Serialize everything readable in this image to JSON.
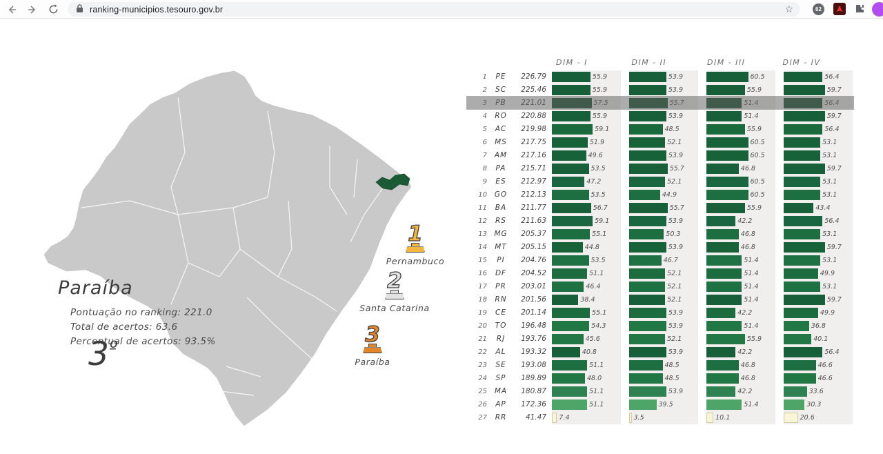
{
  "browser": {
    "url": "ranking-municipios.tesouro.gov.br",
    "extension_badge": "62"
  },
  "state_panel": {
    "name": "Paraíba",
    "stats": [
      "Pontuação no ranking: 221.0",
      "Total de acertos: 63.6",
      "Percentual de acertos: 93.5%"
    ],
    "position_number": "3",
    "position_ordinal": "º"
  },
  "podium": [
    {
      "place": "1",
      "state": "Pernambuco",
      "color": "#f5b53f"
    },
    {
      "place": "2",
      "state": "Santa Catarina",
      "color": "#e2e2e2"
    },
    {
      "place": "3",
      "state": "Paraíba",
      "color": "#e2862e"
    }
  ],
  "chart_data": {
    "type": "bar",
    "orientation": "horizontal",
    "columns": [
      "DIM - I",
      "DIM - II",
      "DIM - III",
      "DIM - IV"
    ],
    "value_axis_max": 100,
    "highlighted_state": "PB",
    "rows": [
      {
        "rank": "1",
        "uf": "PE",
        "score": "226.79",
        "dims": [
          "55.9",
          "53.9",
          "60.5",
          "56.4"
        ],
        "color": "#175f39"
      },
      {
        "rank": "2",
        "uf": "SC",
        "score": "225.46",
        "dims": [
          "55.9",
          "53.9",
          "55.9",
          "59.7"
        ],
        "color": "#175f39"
      },
      {
        "rank": "3",
        "uf": "PB",
        "score": "221.01",
        "dims": [
          "57.5",
          "55.7",
          "51.4",
          "56.4"
        ],
        "color": "#114a2c",
        "highlight": true
      },
      {
        "rank": "4",
        "uf": "RO",
        "score": "220.88",
        "dims": [
          "55.9",
          "53.9",
          "51.4",
          "59.7"
        ],
        "color": "#175f39"
      },
      {
        "rank": "5",
        "uf": "AC",
        "score": "219.98",
        "dims": [
          "59.1",
          "48.5",
          "55.9",
          "56.4"
        ],
        "color": "#1a6a3e"
      },
      {
        "rank": "6",
        "uf": "MS",
        "score": "217.75",
        "dims": [
          "51.9",
          "52.1",
          "60.5",
          "53.1"
        ],
        "color": "#186239"
      },
      {
        "rank": "7",
        "uf": "AM",
        "score": "217.16",
        "dims": [
          "49.6",
          "53.9",
          "60.5",
          "53.1"
        ],
        "color": "#186239"
      },
      {
        "rank": "8",
        "uf": "PA",
        "score": "215.71",
        "dims": [
          "53.5",
          "55.7",
          "46.8",
          "59.7"
        ],
        "color": "#17603a"
      },
      {
        "rank": "9",
        "uf": "ES",
        "score": "212.97",
        "dims": [
          "47.2",
          "52.1",
          "60.5",
          "53.1"
        ],
        "color": "#196640"
      },
      {
        "rank": "10",
        "uf": "GO",
        "score": "212.13",
        "dims": [
          "53.5",
          "44.9",
          "60.5",
          "53.1"
        ],
        "color": "#1d6f41"
      },
      {
        "rank": "11",
        "uf": "BA",
        "score": "211.77",
        "dims": [
          "56.7",
          "55.7",
          "55.9",
          "43.4"
        ],
        "color": "#17603a"
      },
      {
        "rank": "12",
        "uf": "RS",
        "score": "211.63",
        "dims": [
          "59.1",
          "53.9",
          "42.2",
          "56.4"
        ],
        "color": "#196640"
      },
      {
        "rank": "13",
        "uf": "MG",
        "score": "205.37",
        "dims": [
          "55.1",
          "50.3",
          "46.8",
          "53.1"
        ],
        "color": "#1d6f41"
      },
      {
        "rank": "14",
        "uf": "MT",
        "score": "205.15",
        "dims": [
          "44.8",
          "53.9",
          "46.8",
          "59.7"
        ],
        "color": "#186239"
      },
      {
        "rank": "15",
        "uf": "PI",
        "score": "204.76",
        "dims": [
          "53.5",
          "46.7",
          "51.4",
          "53.1"
        ],
        "color": "#1e7142"
      },
      {
        "rank": "16",
        "uf": "DF",
        "score": "204.52",
        "dims": [
          "51.1",
          "52.1",
          "51.4",
          "49.9"
        ],
        "color": "#1c6c40"
      },
      {
        "rank": "17",
        "uf": "PR",
        "score": "203.01",
        "dims": [
          "46.4",
          "52.1",
          "51.4",
          "53.1"
        ],
        "color": "#1e7142"
      },
      {
        "rank": "18",
        "uf": "RN",
        "score": "201.56",
        "dims": [
          "38.4",
          "52.1",
          "51.4",
          "59.7"
        ],
        "color": "#175f39"
      },
      {
        "rank": "19",
        "uf": "CE",
        "score": "201.14",
        "dims": [
          "55.1",
          "53.9",
          "42.2",
          "49.9"
        ],
        "color": "#1c6c40"
      },
      {
        "rank": "20",
        "uf": "TO",
        "score": "196.48",
        "dims": [
          "54.3",
          "53.9",
          "51.4",
          "36.8"
        ],
        "color": "#227845"
      },
      {
        "rank": "21",
        "uf": "RJ",
        "score": "193.76",
        "dims": [
          "45.6",
          "52.1",
          "55.9",
          "40.1"
        ],
        "color": "#227845"
      },
      {
        "rank": "22",
        "uf": "AL",
        "score": "193.32",
        "dims": [
          "40.8",
          "53.9",
          "42.2",
          "56.4"
        ],
        "color": "#175f39"
      },
      {
        "rank": "23",
        "uf": "SE",
        "score": "193.08",
        "dims": [
          "51.1",
          "48.5",
          "46.8",
          "46.6"
        ],
        "color": "#1d6e41"
      },
      {
        "rank": "24",
        "uf": "SP",
        "score": "189.89",
        "dims": [
          "48.0",
          "48.5",
          "46.8",
          "46.6"
        ],
        "color": "#227845"
      },
      {
        "rank": "25",
        "uf": "MA",
        "score": "180.87",
        "dims": [
          "51.1",
          "53.9",
          "42.2",
          "33.6"
        ],
        "color": "#2e8150"
      },
      {
        "rank": "26",
        "uf": "AP",
        "score": "172.36",
        "dims": [
          "51.1",
          "39.5",
          "51.4",
          "30.3"
        ],
        "color": "#4ea568"
      },
      {
        "rank": "27",
        "uf": "RR",
        "score": "41.47",
        "dims": [
          "7.4",
          "3.5",
          "10.1",
          "20.6"
        ],
        "color": "#f8f5d8",
        "border": "#cfcb9e"
      }
    ]
  }
}
